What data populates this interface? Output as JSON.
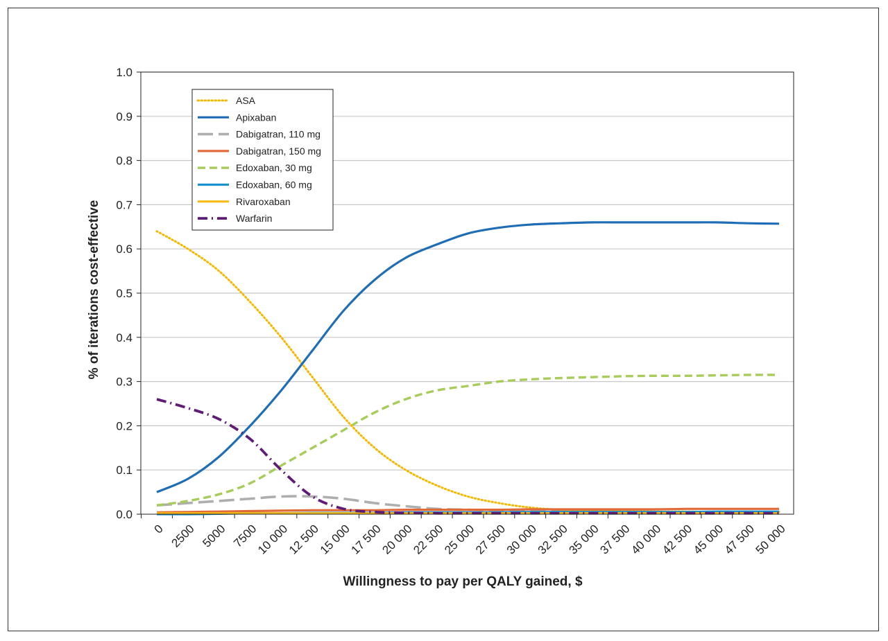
{
  "chart_data": {
    "type": "line",
    "title": "",
    "xlabel": "Willingness to pay per QALY gained, $",
    "ylabel": "% of iterations cost-effective",
    "ylim": [
      0,
      1.0
    ],
    "grid": "horizontal",
    "legend_position": "top-left",
    "y_ticks": [
      "0.0",
      "0.1",
      "0.2",
      "0.3",
      "0.4",
      "0.5",
      "0.6",
      "0.7",
      "0.8",
      "0.9",
      "1.0"
    ],
    "categories": [
      "0",
      "2500",
      "5000",
      "7500",
      "10 000",
      "12 500",
      "15 000",
      "17 500",
      "20 000",
      "22 500",
      "25 000",
      "27 500",
      "30 000",
      "32 500",
      "35 000",
      "37 500",
      "40 000",
      "42 500",
      "45 000",
      "47 500",
      "50 000"
    ],
    "series": [
      {
        "name": "ASA",
        "color": "#F5B800",
        "dash": "dotted",
        "values": [
          0.64,
          0.6,
          0.55,
          0.48,
          0.4,
          0.31,
          0.22,
          0.15,
          0.1,
          0.065,
          0.04,
          0.025,
          0.015,
          0.01,
          0.008,
          0.007,
          0.006,
          0.006,
          0.005,
          0.005,
          0.005
        ]
      },
      {
        "name": "Apixaban",
        "color": "#1F6DB5",
        "dash": "solid",
        "values": [
          0.05,
          0.08,
          0.13,
          0.2,
          0.28,
          0.37,
          0.46,
          0.53,
          0.58,
          0.61,
          0.635,
          0.648,
          0.655,
          0.658,
          0.66,
          0.66,
          0.66,
          0.66,
          0.66,
          0.658,
          0.657
        ]
      },
      {
        "name": "Dabigatran, 110 mg",
        "color": "#AEAEAE",
        "dash": "longdash",
        "values": [
          0.02,
          0.025,
          0.03,
          0.035,
          0.04,
          0.04,
          0.035,
          0.025,
          0.018,
          0.012,
          0.01,
          0.008,
          0.007,
          0.006,
          0.006,
          0.005,
          0.005,
          0.005,
          0.005,
          0.005,
          0.005
        ]
      },
      {
        "name": "Dabigatran, 150 mg",
        "color": "#E06A3A",
        "dash": "solid",
        "values": [
          0.004,
          0.005,
          0.006,
          0.007,
          0.008,
          0.009,
          0.009,
          0.009,
          0.01,
          0.01,
          0.01,
          0.01,
          0.011,
          0.011,
          0.011,
          0.011,
          0.011,
          0.012,
          0.012,
          0.012,
          0.012
        ]
      },
      {
        "name": "Edoxaban, 30 mg",
        "color": "#A7CC5A",
        "dash": "dashed",
        "values": [
          0.02,
          0.03,
          0.045,
          0.07,
          0.11,
          0.15,
          0.19,
          0.23,
          0.26,
          0.28,
          0.29,
          0.3,
          0.305,
          0.308,
          0.31,
          0.312,
          0.313,
          0.313,
          0.314,
          0.315,
          0.315
        ]
      },
      {
        "name": "Edoxaban, 60 mg",
        "color": "#1B92CC",
        "dash": "solid",
        "values": [
          0.0,
          0.0,
          0.001,
          0.002,
          0.002,
          0.003,
          0.003,
          0.003,
          0.004,
          0.004,
          0.004,
          0.004,
          0.005,
          0.005,
          0.005,
          0.005,
          0.005,
          0.005,
          0.006,
          0.006,
          0.006
        ]
      },
      {
        "name": "Rivaroxaban",
        "color": "#F7B916",
        "dash": "solid",
        "values": [
          0.002,
          0.002,
          0.002,
          0.002,
          0.002,
          0.002,
          0.002,
          0.002,
          0.002,
          0.002,
          0.002,
          0.002,
          0.002,
          0.002,
          0.002,
          0.002,
          0.002,
          0.002,
          0.002,
          0.002,
          0.002
        ]
      },
      {
        "name": "Warfarin",
        "color": "#5E1C74",
        "dash": "dashdot",
        "values": [
          0.26,
          0.24,
          0.215,
          0.17,
          0.1,
          0.04,
          0.012,
          0.005,
          0.003,
          0.002,
          0.002,
          0.002,
          0.002,
          0.002,
          0.002,
          0.002,
          0.002,
          0.002,
          0.002,
          0.002,
          0.002
        ]
      }
    ]
  }
}
